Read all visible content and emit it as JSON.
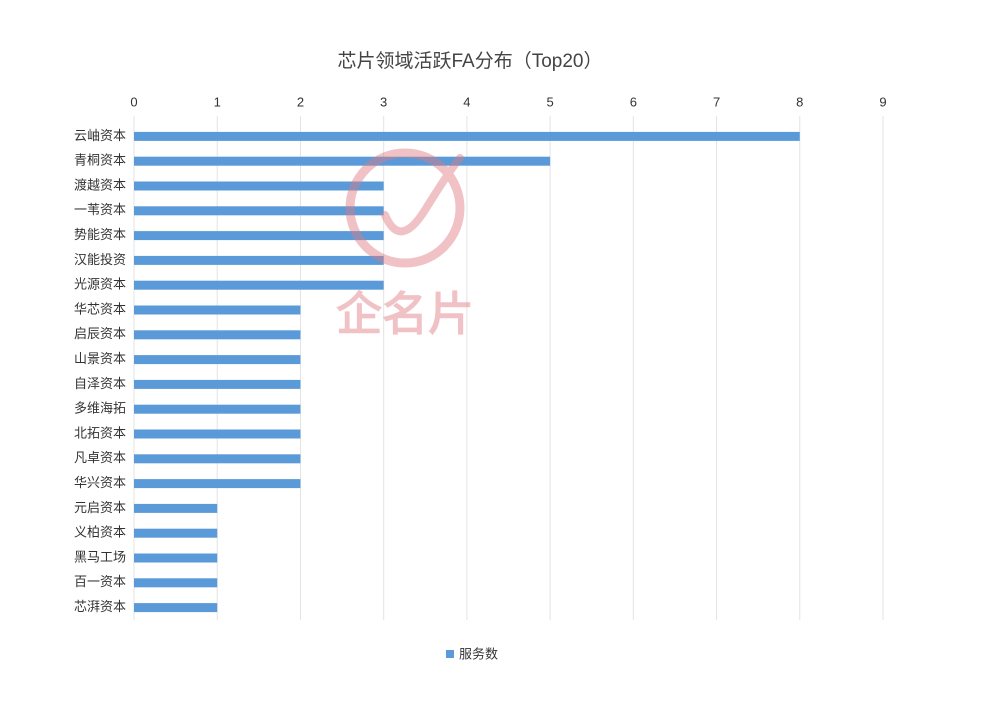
{
  "chart_data": {
    "type": "bar",
    "orientation": "horizontal",
    "title": "芯片领域活跃FA分布（Top20）",
    "categories": [
      "云岫资本",
      "青桐资本",
      "渡越资本",
      "一苇资本",
      "势能资本",
      "汉能投资",
      "光源资本",
      "华芯资本",
      "启辰资本",
      "山景资本",
      "自泽资本",
      "多维海拓",
      "北拓资本",
      "凡卓资本",
      "华兴资本",
      "元启资本",
      "义柏资本",
      "黑马工场",
      "百一资本",
      "芯湃资本"
    ],
    "series": [
      {
        "name": "服务数",
        "color": "#5a9ad8",
        "values": [
          8,
          5,
          3,
          3,
          3,
          3,
          3,
          2,
          2,
          2,
          2,
          2,
          2,
          2,
          2,
          1,
          1,
          1,
          1,
          1
        ]
      }
    ],
    "xlim": [
      0,
      9
    ],
    "xticks": [
      0,
      1,
      2,
      3,
      4,
      5,
      6,
      7,
      8,
      9
    ],
    "grid": true,
    "legend": "bottom",
    "watermark": "企名片"
  }
}
